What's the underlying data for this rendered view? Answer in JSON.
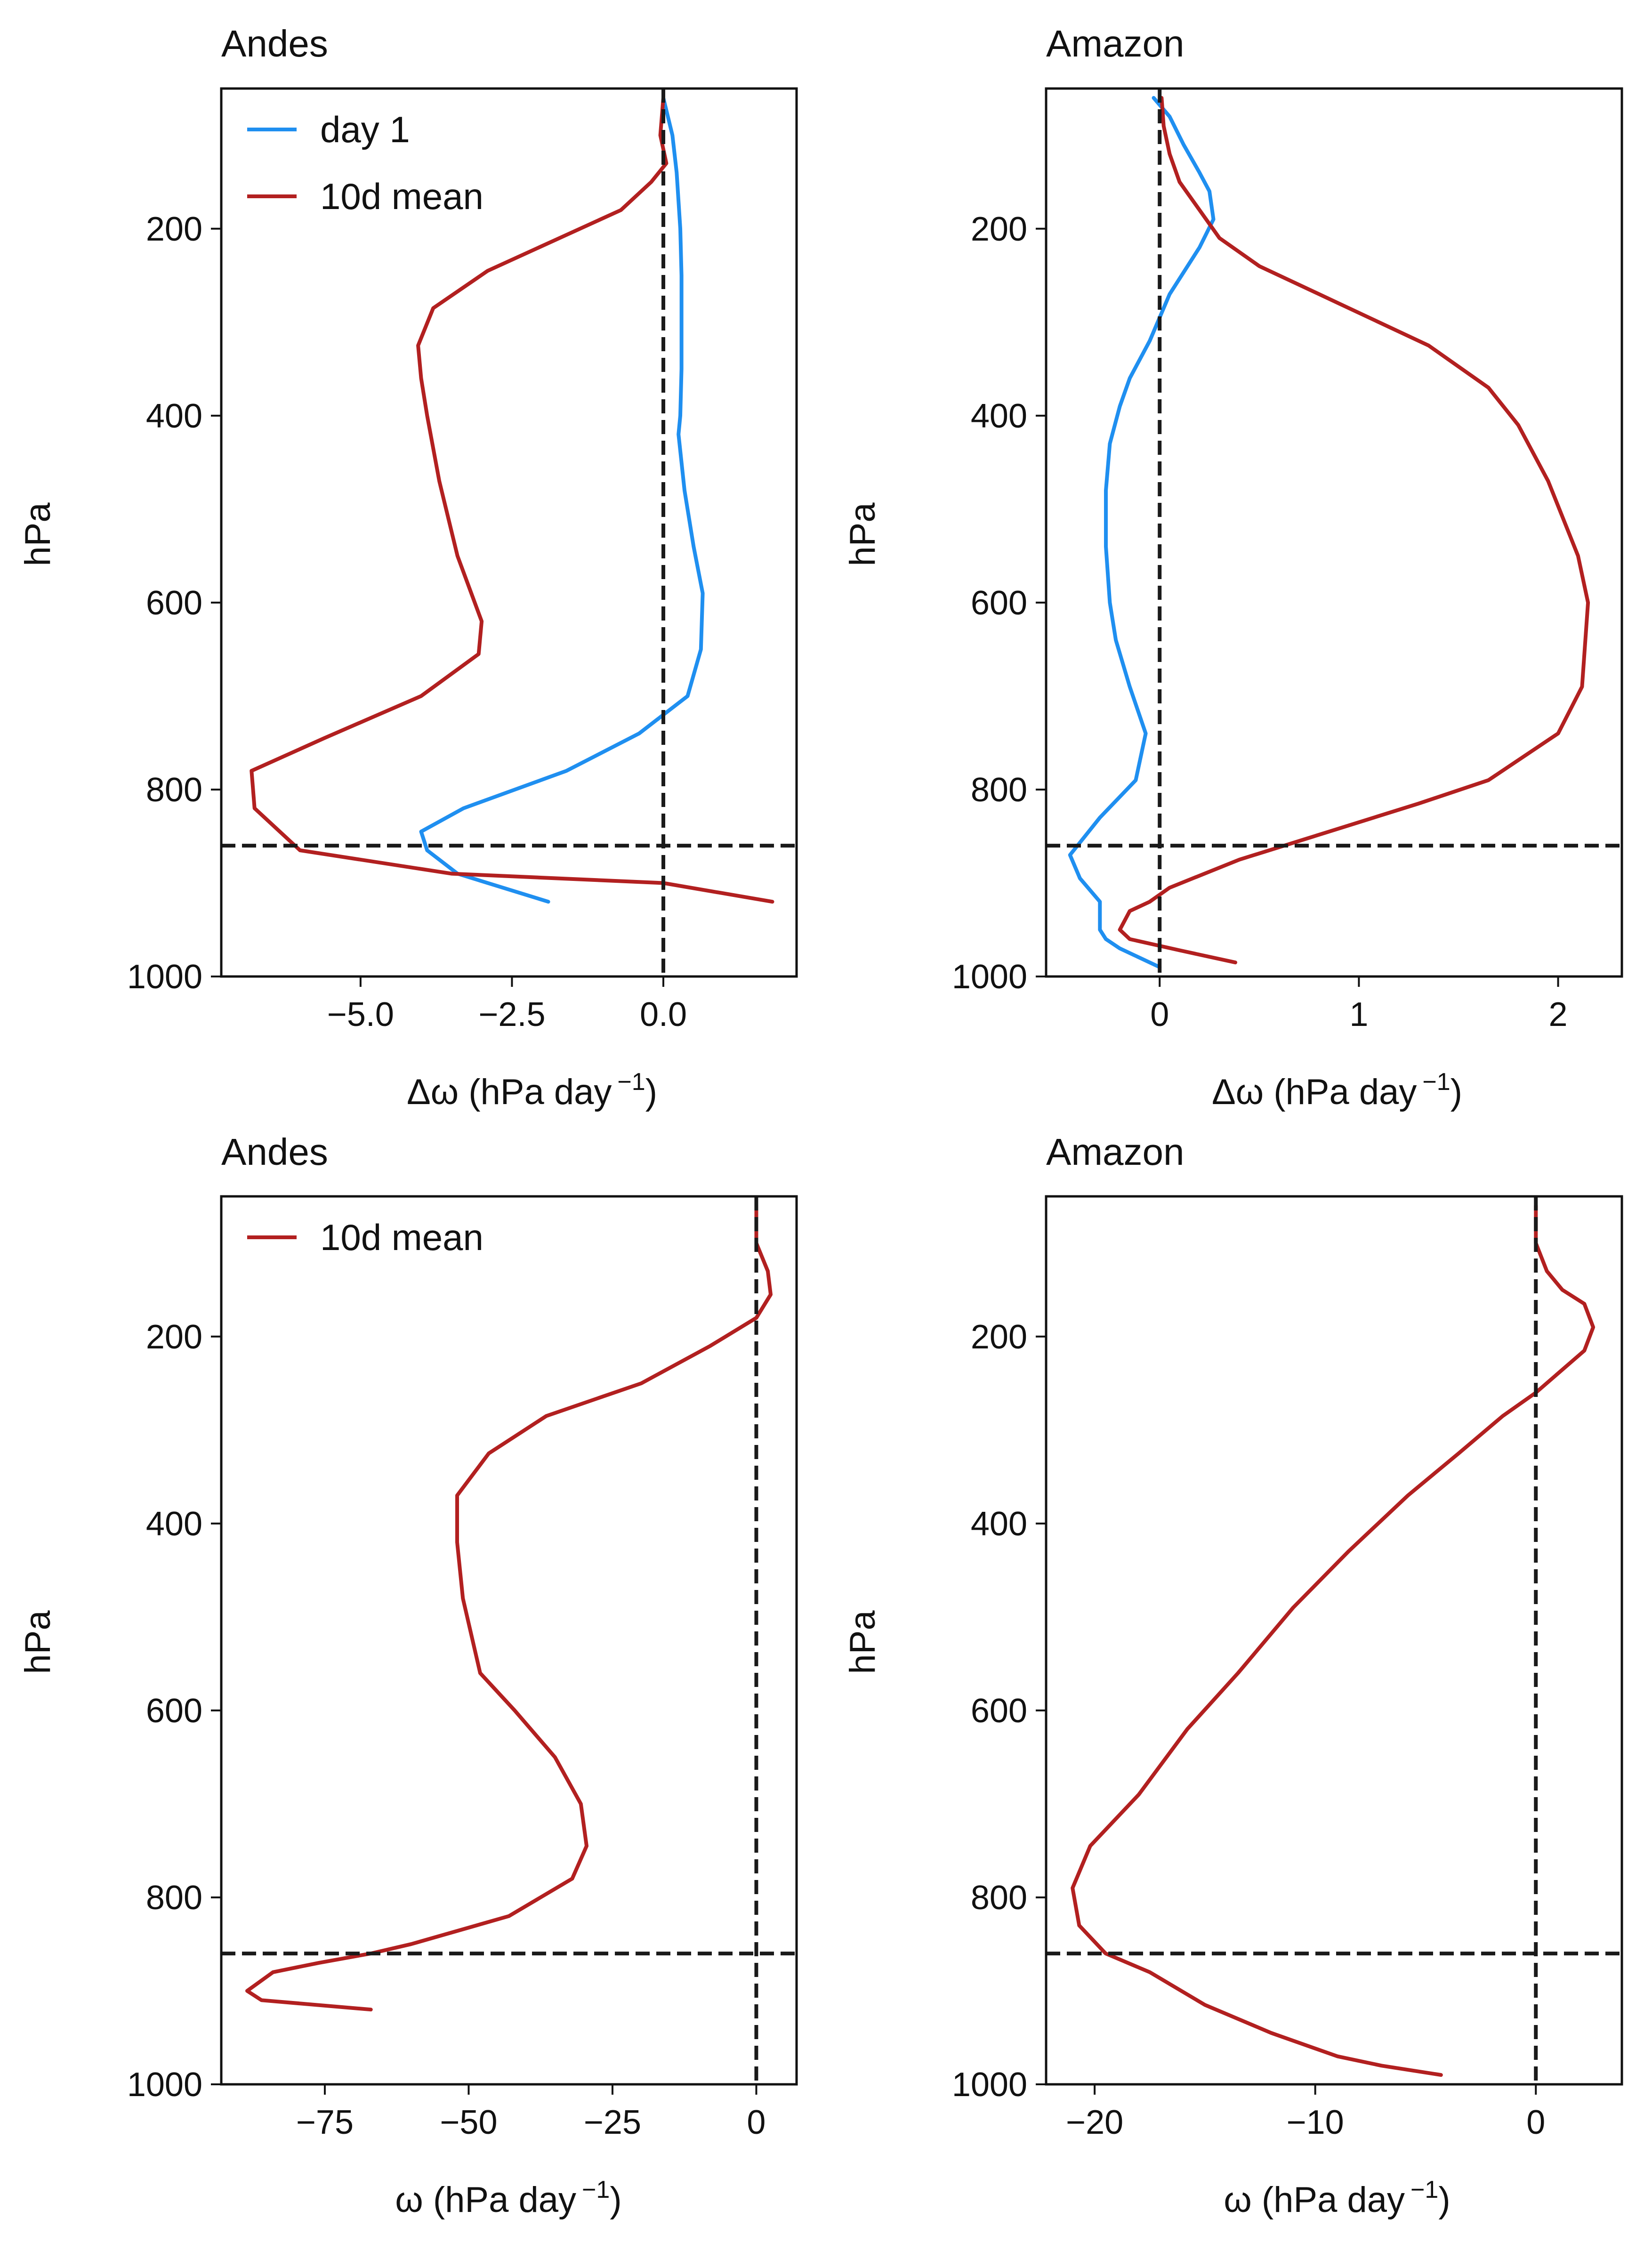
{
  "chart_data": [
    {
      "type": "line",
      "title": "Andes",
      "xlabel_main": "Δω (hPa day",
      "xlabel_sup": "−1",
      "xlabel_close": ")",
      "ylabel": "hPa",
      "xlim": [
        -7.3,
        2.2
      ],
      "ylim": [
        1000,
        50
      ],
      "yinvert": true,
      "xticks": [
        -5.0,
        -2.5,
        0.0
      ],
      "xtick_labels": [
        "−5.0",
        "−2.5",
        "0.0"
      ],
      "yticks": [
        200,
        400,
        600,
        800,
        1000
      ],
      "ytick_labels": [
        "200",
        "400",
        "600",
        "800",
        "1000"
      ],
      "vline": 0,
      "hline": 860,
      "legend": "top-left",
      "grid": false,
      "series": [
        {
          "name": "day 1",
          "color": "#1f8ff0",
          "x": [
            0.0,
            0.15,
            0.22,
            0.28,
            0.3,
            0.3,
            0.3,
            0.28,
            0.25,
            0.35,
            0.5,
            0.65,
            0.62,
            0.4,
            -0.4,
            -1.6,
            -3.3,
            -4.0,
            -3.9,
            -3.4,
            -1.9
          ],
          "y": [
            60,
            100,
            140,
            200,
            250,
            300,
            350,
            400,
            420,
            480,
            540,
            590,
            650,
            700,
            740,
            780,
            820,
            845,
            865,
            890,
            920
          ]
        },
        {
          "name": "10d mean",
          "color": "#b22020",
          "x": [
            0.0,
            -0.05,
            0.05,
            -0.2,
            -0.7,
            -2.9,
            -3.8,
            -4.05,
            -4.0,
            -3.9,
            -3.7,
            -3.4,
            -3.0,
            -3.05,
            -4.0,
            -5.6,
            -6.8,
            -6.75,
            -6.0,
            -3.5,
            0.0,
            1.8
          ],
          "y": [
            60,
            100,
            130,
            150,
            180,
            245,
            285,
            325,
            360,
            400,
            470,
            550,
            620,
            655,
            700,
            745,
            780,
            820,
            865,
            890,
            900,
            920
          ]
        }
      ]
    },
    {
      "type": "line",
      "title": "Amazon",
      "xlabel_main": "Δω (hPa day",
      "xlabel_sup": "−1",
      "xlabel_close": ")",
      "ylabel": "hPa",
      "xlim": [
        -0.57,
        2.32
      ],
      "ylim": [
        1000,
        50
      ],
      "yinvert": true,
      "xticks": [
        0,
        1,
        2
      ],
      "xtick_labels": [
        "0",
        "1",
        "2"
      ],
      "yticks": [
        200,
        400,
        600,
        800,
        1000
      ],
      "ytick_labels": [
        "200",
        "400",
        "600",
        "800",
        "1000"
      ],
      "vline": 0,
      "hline": 860,
      "legend": "none",
      "grid": false,
      "series": [
        {
          "name": "day 1",
          "color": "#1f8ff0",
          "x": [
            -0.03,
            0.05,
            0.12,
            0.2,
            0.25,
            0.27,
            0.2,
            0.05,
            -0.05,
            -0.15,
            -0.2,
            -0.25,
            -0.27,
            -0.27,
            -0.25,
            -0.22,
            -0.15,
            -0.07,
            -0.12,
            -0.3,
            -0.45,
            -0.4,
            -0.3,
            -0.3,
            -0.27,
            -0.2,
            0.0
          ],
          "y": [
            60,
            80,
            110,
            140,
            160,
            190,
            220,
            270,
            320,
            360,
            390,
            430,
            480,
            540,
            600,
            640,
            690,
            740,
            790,
            830,
            870,
            895,
            920,
            950,
            960,
            970,
            990
          ]
        },
        {
          "name": "10d mean",
          "color": "#b22020",
          "x": [
            0.01,
            0.02,
            0.05,
            0.1,
            0.2,
            0.3,
            0.5,
            0.9,
            1.35,
            1.65,
            1.8,
            1.95,
            2.1,
            2.15,
            2.12,
            2.0,
            1.65,
            1.3,
            0.85,
            0.4,
            0.05,
            -0.05,
            -0.15,
            -0.2,
            -0.15,
            0.1,
            0.38
          ],
          "y": [
            60,
            90,
            120,
            150,
            180,
            210,
            240,
            280,
            325,
            370,
            410,
            470,
            550,
            600,
            690,
            740,
            790,
            815,
            845,
            875,
            905,
            920,
            930,
            950,
            960,
            972,
            985
          ]
        }
      ]
    },
    {
      "type": "line",
      "title": "Andes",
      "xlabel_main": "ω (hPa day",
      "xlabel_sup": "−1",
      "xlabel_close": ")",
      "ylabel": "hPa",
      "xlim": [
        -93,
        7
      ],
      "ylim": [
        1000,
        50
      ],
      "yinvert": true,
      "xticks": [
        -75,
        -50,
        -25,
        0
      ],
      "xtick_labels": [
        "−75",
        "−50",
        "−25",
        "0"
      ],
      "yticks": [
        200,
        400,
        600,
        800,
        1000
      ],
      "ytick_labels": [
        "200",
        "400",
        "600",
        "800",
        "1000"
      ],
      "vline": 0,
      "hline": 860,
      "legend": "top-left",
      "grid": false,
      "series": [
        {
          "name": "10d mean",
          "color": "#b22020",
          "x": [
            0.0,
            0.0,
            2.0,
            2.5,
            0.0,
            -8.0,
            -20.0,
            -36.5,
            -46.5,
            -52.0,
            -52.0,
            -51.0,
            -48.0,
            -42.0,
            -35.0,
            -30.5,
            -29.5,
            -32.0,
            -43.0,
            -60.0,
            -67.0,
            -76.0,
            -84.0,
            -88.5,
            -86.0,
            -67.0
          ],
          "y": [
            60,
            100,
            130,
            155,
            180,
            210,
            250,
            285,
            325,
            370,
            420,
            480,
            560,
            600,
            650,
            700,
            745,
            780,
            820,
            850,
            860,
            870,
            880,
            900,
            910,
            920
          ]
        }
      ]
    },
    {
      "type": "line",
      "title": "Amazon",
      "xlabel_main": "ω (hPa day",
      "xlabel_sup": "−1",
      "xlabel_close": ")",
      "ylabel": "hPa",
      "xlim": [
        -22.2,
        3.9
      ],
      "ylim": [
        1000,
        50
      ],
      "yinvert": true,
      "xticks": [
        -20,
        -10,
        0
      ],
      "xtick_labels": [
        "−20",
        "−10",
        "0"
      ],
      "yticks": [
        200,
        400,
        600,
        800,
        1000
      ],
      "ytick_labels": [
        "200",
        "400",
        "600",
        "800",
        "1000"
      ],
      "vline": 0,
      "hline": 860,
      "legend": "none",
      "grid": false,
      "series": [
        {
          "name": "10d mean",
          "color": "#b22020",
          "x": [
            0.0,
            0.0,
            0.5,
            1.2,
            2.2,
            2.6,
            2.2,
            0.0,
            -1.5,
            -3.5,
            -5.8,
            -8.5,
            -11.0,
            -13.5,
            -15.8,
            -18.0,
            -20.2,
            -21.0,
            -20.7,
            -19.5,
            -17.5,
            -15.0,
            -12.0,
            -9.0,
            -7.0,
            -4.3
          ],
          "y": [
            60,
            100,
            130,
            150,
            165,
            190,
            215,
            260,
            285,
            325,
            370,
            430,
            490,
            560,
            620,
            690,
            745,
            790,
            830,
            860,
            880,
            915,
            945,
            970,
            980,
            990
          ]
        }
      ]
    }
  ]
}
